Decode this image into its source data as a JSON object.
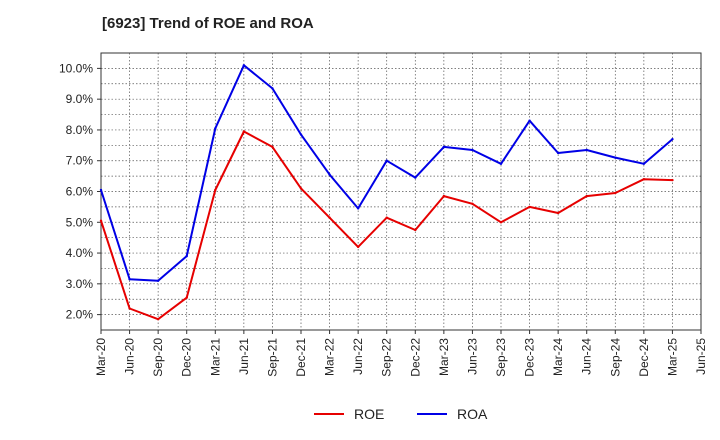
{
  "chart_data": {
    "type": "line",
    "title": "[6923]  Trend of ROE and ROA",
    "xlabel": "",
    "ylabel": "",
    "x": [
      "Mar-20",
      "Jun-20",
      "Sep-20",
      "Dec-20",
      "Mar-21",
      "Jun-21",
      "Sep-21",
      "Dec-21",
      "Mar-22",
      "Jun-22",
      "Sep-22",
      "Dec-22",
      "Mar-23",
      "Jun-23",
      "Sep-23",
      "Dec-23",
      "Mar-24",
      "Jun-24",
      "Sep-24",
      "Dec-24",
      "Mar-25",
      "Jun-25"
    ],
    "ylim": [
      1.5,
      10.5
    ],
    "yticks": [
      2.0,
      3.0,
      4.0,
      5.0,
      6.0,
      7.0,
      8.0,
      9.0,
      10.0
    ],
    "ytick_labels": [
      "2.0%",
      "3.0%",
      "4.0%",
      "5.0%",
      "6.0%",
      "7.0%",
      "8.0%",
      "9.0%",
      "10.0%"
    ],
    "grid": true,
    "legend_position": "bottom-center",
    "series": [
      {
        "name": "ROE",
        "color": "#e60000",
        "values": [
          5.05,
          2.2,
          1.85,
          2.55,
          6.05,
          7.95,
          7.45,
          6.1,
          5.15,
          4.2,
          5.15,
          4.75,
          5.85,
          5.6,
          5.0,
          5.5,
          5.3,
          5.85,
          5.95,
          6.4,
          6.37,
          null
        ]
      },
      {
        "name": "ROA",
        "color": "#0000e6",
        "values": [
          6.05,
          3.15,
          3.1,
          3.9,
          8.05,
          10.1,
          9.35,
          7.85,
          6.55,
          5.45,
          7.0,
          6.45,
          7.45,
          7.35,
          6.9,
          8.3,
          7.25,
          7.35,
          7.1,
          6.9,
          7.7,
          null
        ]
      }
    ]
  }
}
